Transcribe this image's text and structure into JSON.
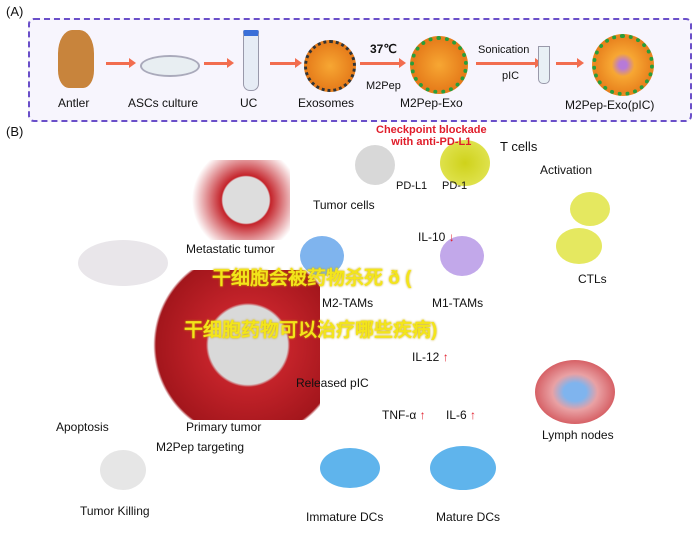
{
  "panel_a": {
    "label": "(A)",
    "steps": [
      "Antler",
      "ASCs culture",
      "UC",
      "Exosomes",
      "M2Pep-Exo",
      "M2Pep-Exo(pIC)"
    ],
    "temperature": "37℃",
    "m2pep": "M2Pep",
    "sonication": "Sonication",
    "pic": "pIC"
  },
  "panel_b": {
    "label": "(B)",
    "checkpoint": "Checkpoint blockade\nwith anti-PD-L1",
    "t_cells": "T cells",
    "pd_l1": "PD-L1",
    "pd_1": "PD-1",
    "tumor_cells": "Tumor cells",
    "activation": "Activation",
    "metastatic_tumor": "Metastatic tumor",
    "il10": "IL-10",
    "m2_tams": "M2-TAMs",
    "m1_tams": "M1-TAMs",
    "ctls": "CTLs",
    "il12": "IL-12",
    "released_pic": "Released pIC",
    "tnf": "TNF-α",
    "il6": "IL-6",
    "lymph_nodes": "Lymph nodes",
    "primary_tumor": "Primary tumor",
    "apoptosis": "Apoptosis",
    "m2pep_targeting": "M2Pep targeting",
    "tumor_killing": "Tumor Killing",
    "immature_dcs": "Immature DCs",
    "mature_dcs": "Mature DCs",
    "down_arrow": "↓",
    "up_arrow": "↑"
  },
  "watermark": {
    "line1": "干细胞会被药物杀死 ð (",
    "line2": "干细胞药物可以治疗哪些疾病)"
  },
  "colors": {
    "border": "#6a4fc9",
    "arrow": "#f26d4f",
    "red": "#e01d2a",
    "watermark": "#f3e51a"
  }
}
